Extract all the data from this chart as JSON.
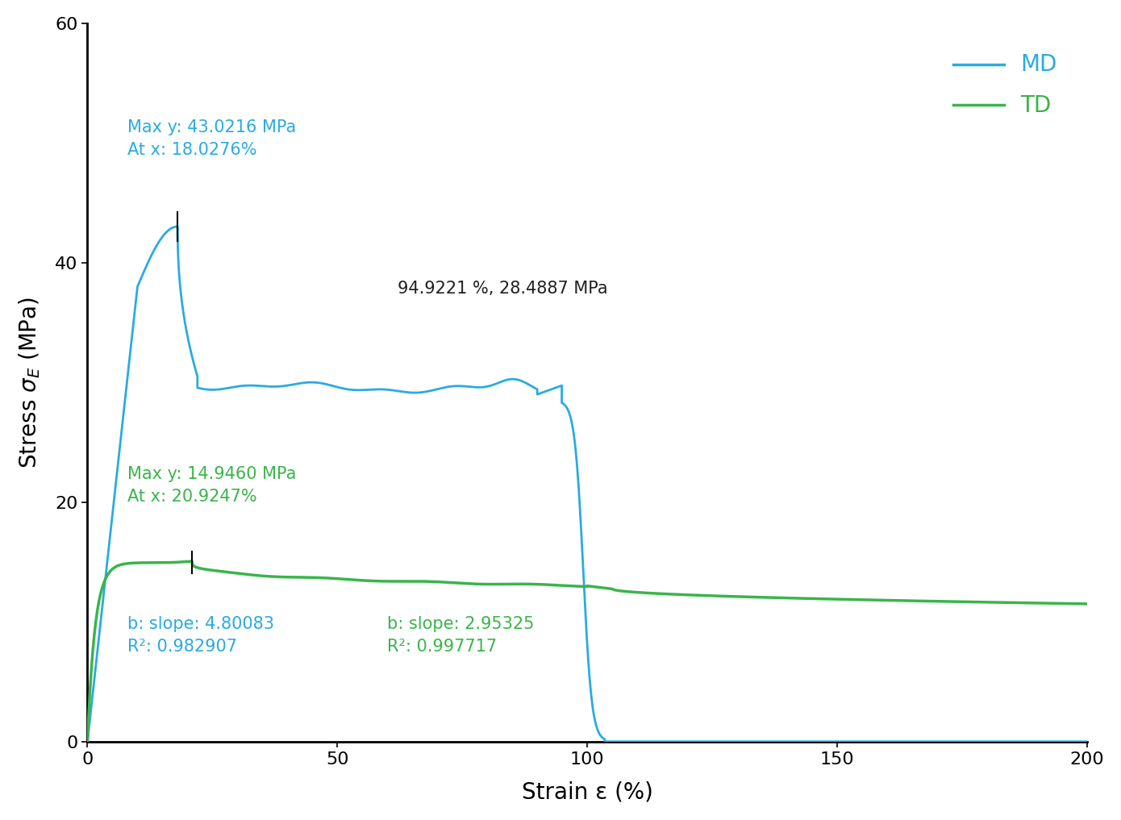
{
  "xlabel": "Strain ε (%)",
  "ylabel": "Stress $\\sigma_E$ (MPa)",
  "xlim": [
    0,
    200
  ],
  "ylim": [
    0,
    60
  ],
  "xticks": [
    0,
    50,
    100,
    150,
    200
  ],
  "yticks": [
    0,
    20,
    40,
    60
  ],
  "md_color": "#29ABE2",
  "td_color": "#39B54A",
  "annotation_color_black": "#231F20",
  "md_label": "MD",
  "td_label": "TD",
  "md_max_text": "Max y: 43.0216 MPa\nAt x: 18.0276%",
  "td_max_text": "Max y: 14.9460 MPa\nAt x: 20.9247%",
  "slope_text_blue": "b: slope: 4.80083\nR²: 0.982907",
  "slope_text_green": "b: slope: 2.95325\nR²: 0.997717",
  "point_annotation": "94.9221 %, 28.4887 MPa",
  "background_color": "#ffffff",
  "legend_fontsize": 18,
  "axis_label_fontsize": 20,
  "tick_fontsize": 16,
  "annotation_fontsize": 14
}
